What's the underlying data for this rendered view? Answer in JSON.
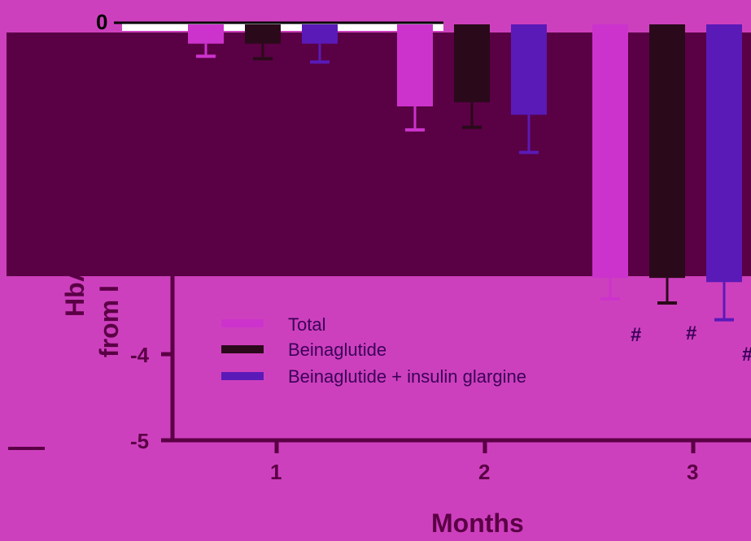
{
  "chart_data": {
    "type": "bar",
    "xlabel": "Months",
    "ylabel_visible_fragments": [
      "HbA",
      "from I"
    ],
    "categories": [
      "1",
      "2",
      "3"
    ],
    "ylim": [
      -5,
      0
    ],
    "y_ticks": [
      "0",
      "-4",
      "-5"
    ],
    "series": [
      {
        "name": "Total",
        "color": "#cc33cc",
        "values": [
          -0.25,
          -1.0,
          -3.05
        ],
        "errors": [
          0.15,
          0.28,
          0.25
        ]
      },
      {
        "name": "Beinaglutide",
        "color": "#2a0a1a",
        "values": [
          -0.25,
          -0.95,
          -3.05
        ],
        "errors": [
          0.18,
          0.3,
          0.3
        ]
      },
      {
        "name": "Beinaglutide + insulin glargine",
        "color": "#5a1ab8",
        "values": [
          -0.25,
          -1.1,
          -3.1
        ],
        "errors": [
          0.22,
          0.45,
          0.45
        ]
      }
    ],
    "annotations": [
      "#",
      "#",
      "#"
    ],
    "legend_position": "bottom-left",
    "colors": {
      "background": "#cd40bd",
      "overlay": "#5a0045",
      "axis": "#5a0045",
      "text": "#3a0058"
    }
  }
}
